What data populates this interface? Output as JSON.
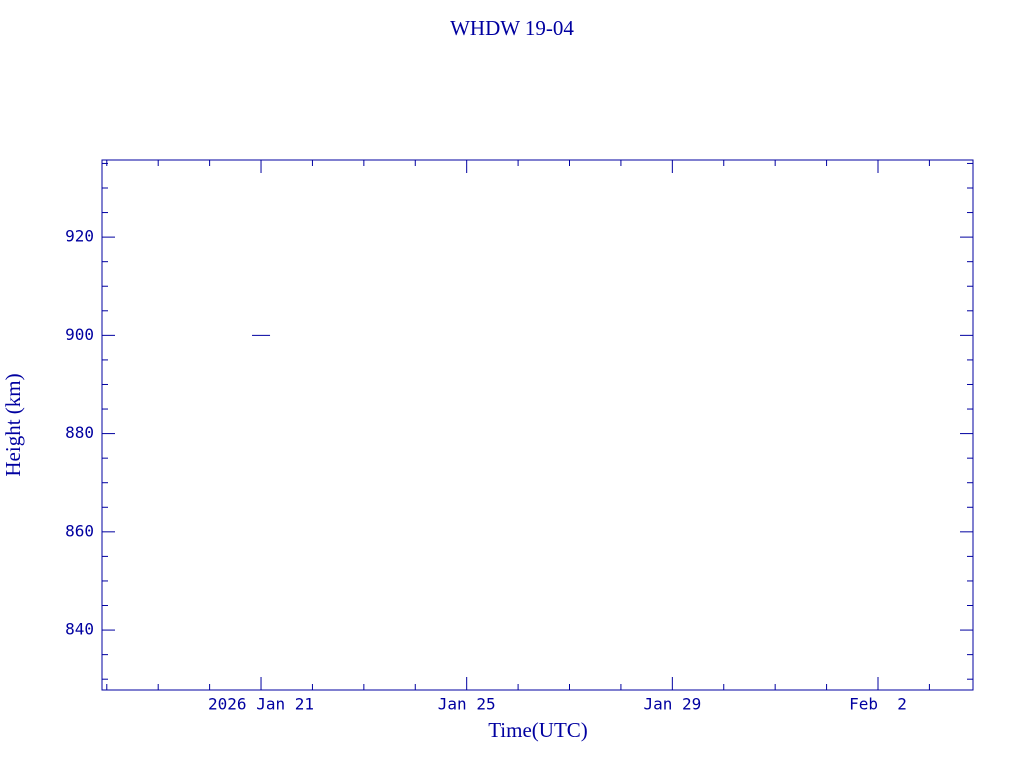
{
  "chart_data": {
    "type": "scatter",
    "title": "WHDW 19-04",
    "xlabel": "Time(UTC)",
    "ylabel": "Height (km)",
    "x": [
      "2026-01-21"
    ],
    "values": [
      900
    ],
    "color": "#0000a0",
    "marker": "hline",
    "xlim": [
      "2026-01-17T21:46Z",
      "2026-02-03T20:21Z"
    ],
    "xticks": [
      {
        "value": "2026-01-21",
        "label": "2026 Jan 21"
      },
      {
        "value": "2026-01-25",
        "label": "Jan 25"
      },
      {
        "value": "2026-01-29",
        "label": "Jan 29"
      },
      {
        "value": "2026-02-02",
        "label": "Feb  2"
      }
    ],
    "xminorticks": [
      "2026-01-18",
      "2026-01-19",
      "2026-01-20",
      "2026-01-22",
      "2026-01-23",
      "2026-01-24",
      "2026-01-26",
      "2026-01-27",
      "2026-01-28",
      "2026-01-30",
      "2026-01-31",
      "2026-02-01",
      "2026-02-03"
    ],
    "ylim": [
      827.8,
      935.7
    ],
    "yticks": [
      840,
      860,
      880,
      900,
      920
    ],
    "yminorticks": [
      830,
      835,
      845,
      850,
      855,
      865,
      870,
      875,
      885,
      890,
      895,
      905,
      910,
      915,
      925,
      930,
      935
    ]
  }
}
